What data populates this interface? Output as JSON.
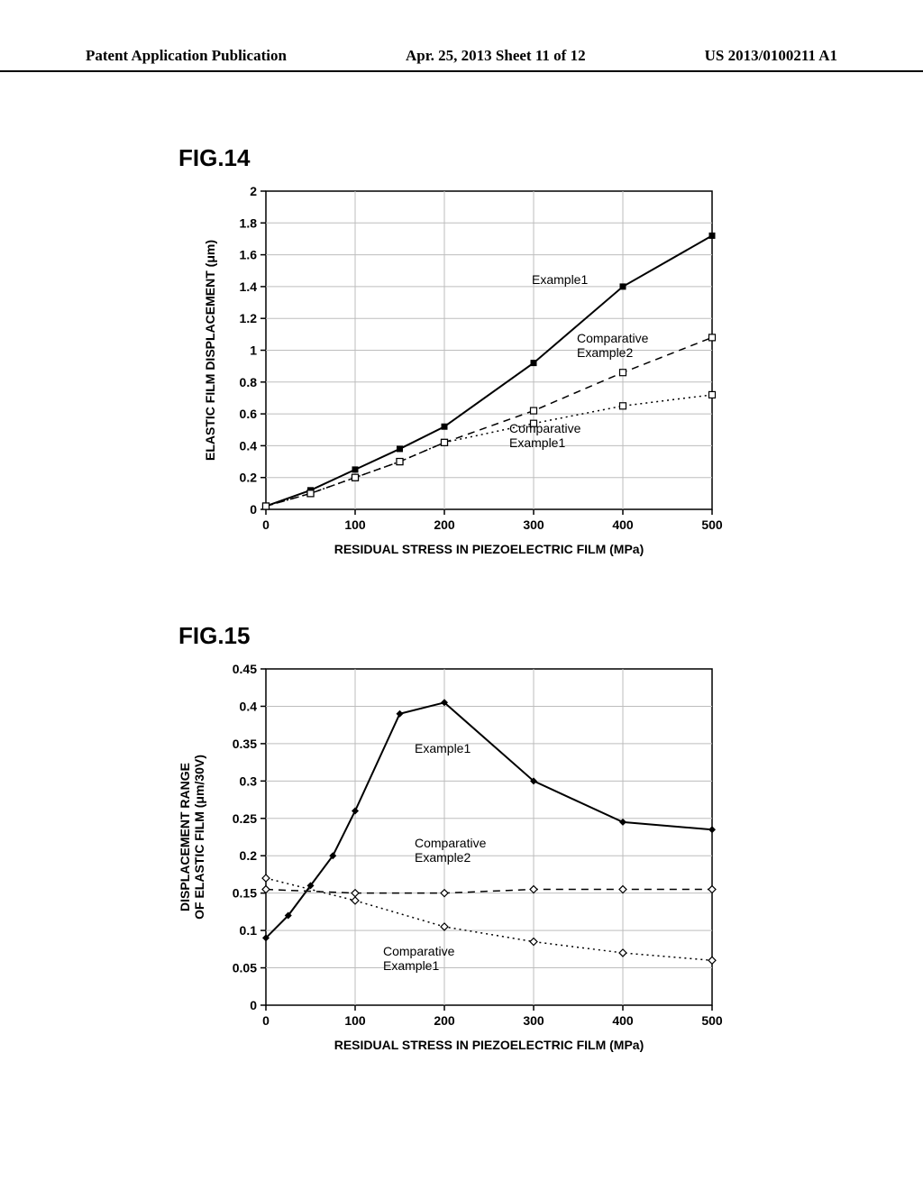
{
  "header": {
    "left": "Patent Application Publication",
    "center": "Apr. 25, 2013  Sheet 11 of 12",
    "right": "US 2013/0100211 A1"
  },
  "fig14": {
    "label": "FIG.14",
    "type": "line",
    "xlabel": "RESIDUAL STRESS IN PIEZOELECTRIC FILM (MPa)",
    "ylabel": "ELASTIC FILM DISPLACEMENT (μm)",
    "xlim": [
      0,
      500
    ],
    "ylim": [
      0,
      2
    ],
    "xtick_step": 100,
    "yticks": [
      0,
      0.2,
      0.4,
      0.6,
      0.8,
      1,
      1.2,
      1.4,
      1.6,
      1.8,
      2
    ],
    "background_color": "#ffffff",
    "grid_color": "#bdbdbd",
    "axis_color": "#000000",
    "tick_fontsize": 14,
    "label_fontsize": 14,
    "series": {
      "example1": {
        "label": "Example1",
        "marker": "square-filled",
        "marker_size": 7,
        "line_style": "solid",
        "line_width": 2,
        "color": "#000000",
        "x": [
          0,
          50,
          100,
          150,
          200,
          300,
          400,
          500
        ],
        "y": [
          0.02,
          0.12,
          0.25,
          0.38,
          0.52,
          0.92,
          1.4,
          1.72
        ]
      },
      "comparative2": {
        "label": "Comparative\nExample2",
        "marker": "square-open",
        "marker_size": 7,
        "line_style": "dashed",
        "line_width": 1.5,
        "color": "#000000",
        "x": [
          0,
          50,
          100,
          150,
          200,
          300,
          400,
          500
        ],
        "y": [
          0.02,
          0.1,
          0.2,
          0.3,
          0.42,
          0.62,
          0.86,
          1.08
        ]
      },
      "comparative1": {
        "label": "Comparative\nExample1",
        "marker": "square-open",
        "marker_size": 7,
        "line_style": "dotted",
        "line_width": 1.5,
        "color": "#000000",
        "x": [
          0,
          50,
          100,
          150,
          200,
          300,
          400,
          500
        ],
        "y": [
          0.02,
          0.1,
          0.2,
          0.3,
          0.42,
          0.54,
          0.65,
          0.72
        ]
      }
    }
  },
  "fig15": {
    "label": "FIG.15",
    "type": "line",
    "xlabel": "RESIDUAL STRESS IN PIEZOELECTRIC FILM (MPa)",
    "ylabel": "DISPLACEMENT RANGE\nOF ELASTIC FILM (μm/30V)",
    "xlim": [
      0,
      500
    ],
    "ylim": [
      0,
      0.45
    ],
    "xtick_step": 100,
    "yticks": [
      0,
      0.05,
      0.1,
      0.15,
      0.2,
      0.25,
      0.3,
      0.35,
      0.4,
      0.45
    ],
    "background_color": "#ffffff",
    "grid_color": "#bdbdbd",
    "axis_color": "#000000",
    "tick_fontsize": 14,
    "label_fontsize": 14,
    "series": {
      "example1": {
        "label": "Example1",
        "marker": "diamond-filled",
        "marker_size": 8,
        "line_style": "solid",
        "line_width": 2,
        "color": "#000000",
        "x": [
          0,
          25,
          50,
          75,
          100,
          150,
          200,
          300,
          400,
          500
        ],
        "y": [
          0.09,
          0.12,
          0.16,
          0.2,
          0.26,
          0.39,
          0.405,
          0.3,
          0.245,
          0.235
        ]
      },
      "comparative2": {
        "label": "Comparative\nExample2",
        "marker": "diamond-open",
        "marker_size": 8,
        "line_style": "dashed",
        "line_width": 1.5,
        "color": "#000000",
        "x": [
          0,
          100,
          200,
          300,
          400,
          500
        ],
        "y": [
          0.155,
          0.15,
          0.15,
          0.155,
          0.155,
          0.155
        ]
      },
      "comparative1": {
        "label": "Comparative\nExample1",
        "marker": "diamond-open",
        "marker_size": 8,
        "line_style": "dotted",
        "line_width": 1.5,
        "color": "#000000",
        "x": [
          0,
          100,
          200,
          300,
          400,
          500
        ],
        "y": [
          0.17,
          0.14,
          0.105,
          0.085,
          0.07,
          0.06
        ]
      }
    }
  }
}
